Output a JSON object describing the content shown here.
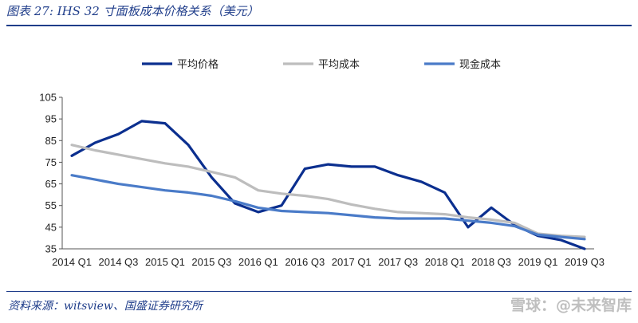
{
  "caption": "图表 27:  IHS 32 寸面板成本价格关系（美元）",
  "source": "资料来源：witsview、国盛证券研究所",
  "watermark": "雪球：@未来智库",
  "chart_data": {
    "type": "line",
    "title": "",
    "xlabel": "",
    "ylabel": "",
    "ylim": [
      35,
      105
    ],
    "yticks": [
      35,
      45,
      55,
      65,
      75,
      85,
      95,
      105
    ],
    "grid": false,
    "legend_position": "top",
    "x": [
      "2014 Q1",
      "2014 Q2",
      "2014 Q3",
      "2014 Q4",
      "2015 Q1",
      "2015 Q2",
      "2015 Q3",
      "2015 Q4",
      "2016 Q1",
      "2016 Q2",
      "2016 Q3",
      "2016 Q4",
      "2017 Q1",
      "2017 Q2",
      "2017 Q3",
      "2017 Q4",
      "2018 Q1",
      "2018 Q2",
      "2018 Q3",
      "2018 Q4",
      "2019 Q1",
      "2019 Q2",
      "2019 Q3"
    ],
    "xtick_labels": [
      "2014  Q1",
      "2014  Q3",
      "2015  Q1",
      "2015  Q3",
      "2016  Q1",
      "2016  Q3",
      "2017  Q1",
      "2017  Q3",
      "2018  Q1",
      "2018  Q3",
      "2019  Q1",
      "2019  Q3"
    ],
    "series": [
      {
        "name": "平均价格",
        "color": "#0b2f8f",
        "values": [
          78,
          84,
          88,
          94,
          93,
          83,
          68,
          56,
          52,
          55,
          72,
          74,
          73,
          73,
          69,
          66,
          61,
          45,
          54,
          46,
          41,
          39,
          35
        ]
      },
      {
        "name": "平均成本",
        "color": "#bdbdbd",
        "values": [
          83,
          80.5,
          78.5,
          76.5,
          74.5,
          73,
          70.5,
          68,
          62,
          60.5,
          59.5,
          58,
          55.5,
          53.5,
          52,
          51.5,
          51,
          49.5,
          48.5,
          47,
          42,
          41,
          40.5
        ]
      },
      {
        "name": "现金成本",
        "color": "#4a7bc8",
        "values": [
          69,
          67,
          65,
          63.5,
          62,
          61,
          59.5,
          57,
          54,
          52.5,
          52,
          51.5,
          50.5,
          49.5,
          49,
          49,
          49,
          48,
          47,
          45.5,
          41.5,
          40.5,
          39.5
        ]
      }
    ]
  }
}
